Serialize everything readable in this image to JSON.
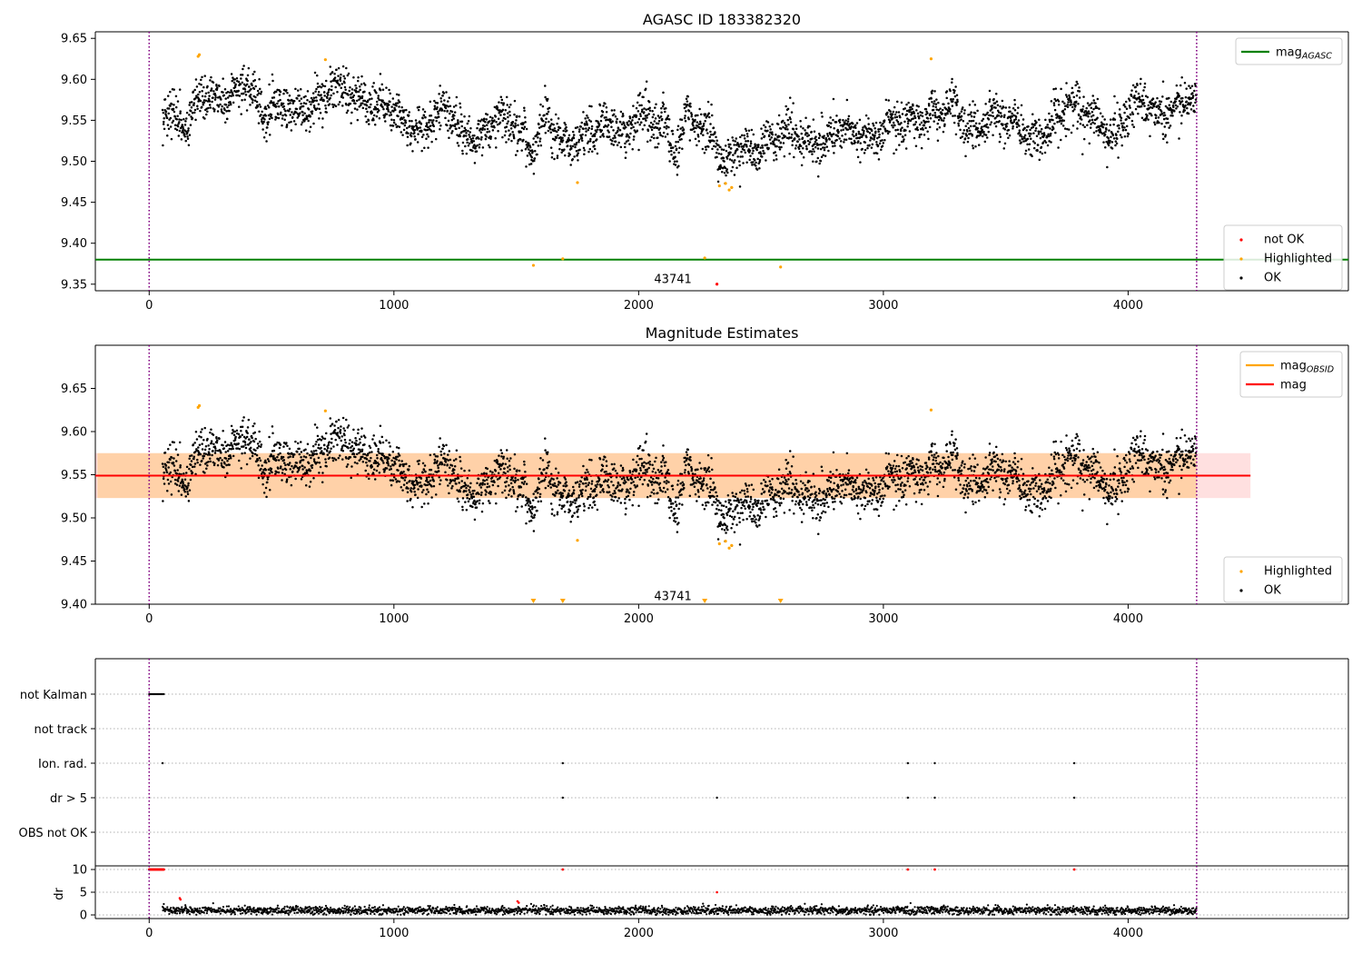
{
  "figure": {
    "top_title": "AGASC ID 183382320",
    "mid_title": "Magnitude Estimates",
    "obsid_label": "43741"
  },
  "colors": {
    "ok": "#000000",
    "highlighted": "#ffa500",
    "not_ok": "#ff0000",
    "mag_agasc": "#008000",
    "mag_obsid": "#ffa500",
    "mag": "#ff0000",
    "obs_boundary": "#800080"
  },
  "chart_data": [
    {
      "type": "scatter",
      "title": "AGASC ID 183382320",
      "xlim": [
        -220,
        4900
      ],
      "ylim": [
        9.342,
        9.658
      ],
      "xticks": [
        0,
        1000,
        2000,
        3000,
        4000
      ],
      "yticks": [
        "9.35",
        "9.40",
        "9.45",
        "9.50",
        "9.55",
        "9.60",
        "9.65"
      ],
      "grid": false,
      "legend_positions": [
        "top-right",
        "lower-right"
      ],
      "legend_top": [
        {
          "label": "mag",
          "sub": "AGASC",
          "kind": "line",
          "color": "#008000"
        }
      ],
      "legend_bottom": [
        {
          "label": "not OK",
          "kind": "dot",
          "color": "#ff0000"
        },
        {
          "label": "Highlighted",
          "kind": "dot",
          "color": "#ffa500"
        },
        {
          "label": "OK",
          "kind": "dot",
          "color": "#000000"
        }
      ],
      "hline": {
        "name": "mag_AGASC",
        "y": 9.38,
        "color": "#008000"
      },
      "obs_boundaries": [
        0,
        4280
      ],
      "ok_series": {
        "name": "OK",
        "x_range": [
          55,
          4280
        ],
        "segments": [
          [
            55,
            9.55
          ],
          [
            150,
            9.548
          ],
          [
            210,
            9.585
          ],
          [
            300,
            9.565
          ],
          [
            400,
            9.6
          ],
          [
            470,
            9.555
          ],
          [
            600,
            9.565
          ],
          [
            700,
            9.575
          ],
          [
            800,
            9.585
          ],
          [
            900,
            9.575
          ],
          [
            1000,
            9.55
          ],
          [
            1100,
            9.545
          ],
          [
            1200,
            9.555
          ],
          [
            1300,
            9.53
          ],
          [
            1400,
            9.55
          ],
          [
            1500,
            9.54
          ],
          [
            1570,
            9.52
          ],
          [
            1620,
            9.56
          ],
          [
            1680,
            9.51
          ],
          [
            1800,
            9.545
          ],
          [
            1900,
            9.54
          ],
          [
            1950,
            9.52
          ],
          [
            2000,
            9.57
          ],
          [
            2100,
            9.545
          ],
          [
            2150,
            9.5
          ],
          [
            2200,
            9.555
          ],
          [
            2300,
            9.54
          ],
          [
            2350,
            9.49
          ],
          [
            2400,
            9.505
          ],
          [
            2500,
            9.525
          ],
          [
            2600,
            9.53
          ],
          [
            2700,
            9.525
          ],
          [
            2800,
            9.535
          ],
          [
            2900,
            9.53
          ],
          [
            3000,
            9.545
          ],
          [
            3100,
            9.54
          ],
          [
            3200,
            9.57
          ],
          [
            3300,
            9.56
          ],
          [
            3340,
            9.53
          ],
          [
            3450,
            9.56
          ],
          [
            3600,
            9.525
          ],
          [
            3700,
            9.555
          ],
          [
            3800,
            9.56
          ],
          [
            3900,
            9.55
          ],
          [
            3950,
            9.53
          ],
          [
            4050,
            9.575
          ],
          [
            4150,
            9.56
          ],
          [
            4280,
            9.57
          ]
        ],
        "scatter_sd": 0.013
      },
      "highlighted_points": [
        {
          "x": 200,
          "y": 9.628
        },
        {
          "x": 205,
          "y": 9.63
        },
        {
          "x": 720,
          "y": 9.624
        },
        {
          "x": 1750,
          "y": 9.474
        },
        {
          "x": 2330,
          "y": 9.47
        },
        {
          "x": 2355,
          "y": 9.473
        },
        {
          "x": 2370,
          "y": 9.465
        },
        {
          "x": 2380,
          "y": 9.468
        },
        {
          "x": 3195,
          "y": 9.625
        },
        {
          "x": 1570,
          "y": 9.373
        },
        {
          "x": 1690,
          "y": 9.381
        },
        {
          "x": 2270,
          "y": 9.382
        },
        {
          "x": 2580,
          "y": 9.371
        }
      ],
      "not_ok_points": [
        {
          "x": 2320,
          "y": 9.35
        }
      ],
      "annotation": {
        "x": 2140,
        "y": 9.357,
        "text_key": "figure.obsid_label"
      }
    },
    {
      "type": "scatter",
      "title": "Magnitude Estimates",
      "xlim": [
        -220,
        4900
      ],
      "ylim": [
        9.4,
        9.7
      ],
      "xticks": [
        0,
        1000,
        2000,
        3000,
        4000
      ],
      "yticks": [
        "9.40",
        "9.45",
        "9.50",
        "9.55",
        "9.60",
        "9.65"
      ],
      "grid": false,
      "legend_positions": [
        "top-right",
        "lower-right"
      ],
      "legend_top": [
        {
          "label": "mag",
          "sub": "OBSID",
          "kind": "line",
          "color": "#ffa500"
        },
        {
          "label": "mag",
          "sub": "",
          "kind": "line",
          "color": "#ff0000"
        }
      ],
      "legend_bottom": [
        {
          "label": "Highlighted",
          "kind": "dot",
          "color": "#ffa500"
        },
        {
          "label": "OK",
          "kind": "dot",
          "color": "#000000"
        }
      ],
      "mag": 9.549,
      "mag_band": [
        9.523,
        9.575
      ],
      "mag_obsid": 9.549,
      "mag_obsid_band": [
        9.523,
        9.575
      ],
      "band_x_range": [
        -220,
        4500
      ],
      "obs_boundaries": [
        0,
        4280
      ],
      "ok_series_ref": 0,
      "highlighted_points_ref": 0,
      "below_range_markers": [
        1570,
        1690,
        2270,
        2580
      ],
      "annotation": {
        "x": 2140,
        "y": 9.41,
        "text_key": "figure.obsid_label"
      }
    },
    {
      "type": "scatter",
      "title": "",
      "xlim": [
        -220,
        4900
      ],
      "xticks": [
        0,
        1000,
        2000,
        3000,
        4000
      ],
      "categories": [
        "not Kalman",
        "not track",
        "Ion. rad.",
        "dr > 5",
        "OBS not OK"
      ],
      "flags": {
        "not Kalman": {
          "x_range": [
            0,
            60
          ]
        },
        "not track": {
          "x": []
        },
        "Ion. rad.": {
          "x": [
            55,
            1690,
            3100,
            3210,
            3780
          ]
        },
        "dr > 5": {
          "x": [
            1690,
            2320,
            3100,
            3210,
            3780
          ]
        },
        "OBS not OK": {
          "x": []
        }
      },
      "obs_boundaries": [
        0,
        4280
      ]
    },
    {
      "type": "scatter",
      "title": "",
      "ylabel": "dr",
      "xlim": [
        -220,
        4900
      ],
      "ylim": [
        -0.8,
        10.8
      ],
      "xticks": [
        0,
        1000,
        2000,
        3000,
        4000
      ],
      "yticks": [
        "0",
        "5",
        "10"
      ],
      "clip_value": 10,
      "dr_typical": 1.0,
      "dr_sd": 0.45,
      "dr_x_range": [
        55,
        4280
      ],
      "red_points_at_clip": {
        "x_range": [
          0,
          60
        ],
        "x": [
          1690,
          3100,
          3210,
          3780
        ]
      },
      "red_points": [
        {
          "x": 125,
          "y": 3.7
        },
        {
          "x": 128,
          "y": 3.4
        },
        {
          "x": 1505,
          "y": 3.0
        },
        {
          "x": 1510,
          "y": 2.7
        },
        {
          "x": 2320,
          "y": 5.0
        }
      ],
      "obs_boundaries": [
        0,
        4280
      ]
    }
  ]
}
